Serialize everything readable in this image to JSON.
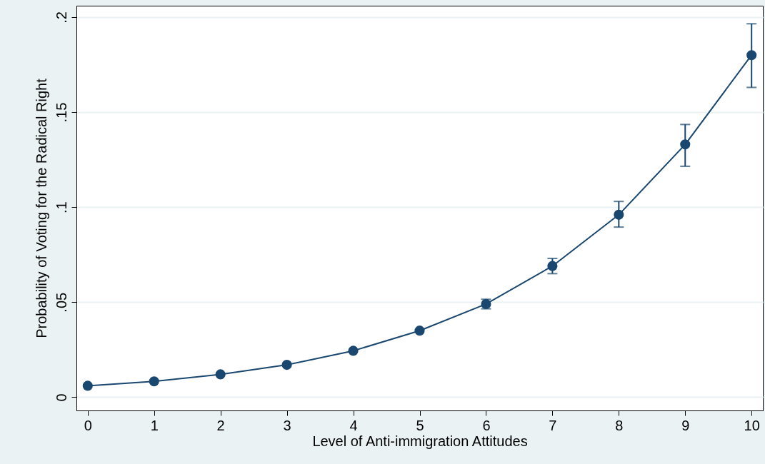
{
  "chart_data": {
    "type": "line",
    "xlabel": "Level of Anti-immigration Attitudes",
    "ylabel": "Probability of Voting for the Radical Right",
    "x": [
      0,
      1,
      2,
      3,
      4,
      5,
      6,
      7,
      8,
      9,
      10
    ],
    "series": [
      {
        "color": "#1a476f",
        "values": [
          0.006,
          0.0083,
          0.012,
          0.017,
          0.0244,
          0.035,
          0.049,
          0.069,
          0.096,
          0.133,
          0.18
        ],
        "errors": [
          null,
          null,
          null,
          null,
          null,
          null,
          [
            0.0465,
            0.0515
          ],
          [
            0.065,
            0.073
          ],
          [
            0.0895,
            0.103
          ],
          [
            0.1215,
            0.1435
          ],
          [
            0.163,
            0.1965
          ]
        ]
      }
    ],
    "xlim": [
      -0.17,
      10.17
    ],
    "ylim": [
      -0.007,
      0.206
    ],
    "xticks": [
      0,
      1,
      2,
      3,
      4,
      5,
      6,
      7,
      8,
      9,
      10
    ],
    "yticks": [
      {
        "value": 0,
        "label": "0"
      },
      {
        "value": 0.05,
        "label": ".05"
      },
      {
        "value": 0.1,
        "label": ".1"
      },
      {
        "value": 0.15,
        "label": ".15"
      },
      {
        "value": 0.2,
        "label": ".2"
      }
    ],
    "grid": "y",
    "marker": "circle",
    "line_style": "solid"
  }
}
